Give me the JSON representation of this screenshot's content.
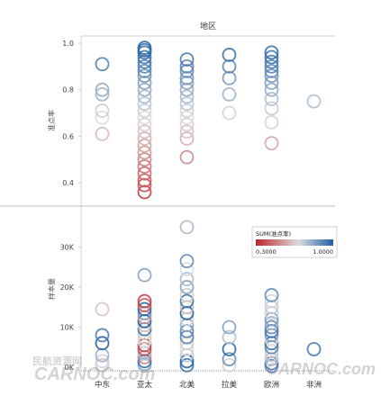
{
  "chart_data": {
    "type": "scatter",
    "title": "地区",
    "categories": [
      "中东",
      "亚太",
      "北美",
      "拉美",
      "欧洲",
      "非洲"
    ],
    "panels": [
      {
        "ylabel": "准点率",
        "ylim": [
          0.35,
          1.0
        ],
        "yticks": [
          0.4,
          0.6,
          0.8,
          1.0
        ],
        "yticklabels": [
          "0.4",
          "0.6",
          "0.8",
          "1.0"
        ],
        "values_by_category": [
          [
            0.61,
            0.68,
            0.71,
            0.78,
            0.8,
            0.91
          ],
          [
            0.36,
            0.39,
            0.41,
            0.44,
            0.47,
            0.5,
            0.53,
            0.56,
            0.59,
            0.62,
            0.65,
            0.68,
            0.71,
            0.74,
            0.77,
            0.8,
            0.83,
            0.86,
            0.88,
            0.9,
            0.92,
            0.94,
            0.96,
            0.97,
            0.98
          ],
          [
            0.51,
            0.59,
            0.62,
            0.65,
            0.68,
            0.71,
            0.74,
            0.77,
            0.8,
            0.83,
            0.85,
            0.88,
            0.9,
            0.93
          ],
          [
            0.7,
            0.78,
            0.85,
            0.9,
            0.95
          ],
          [
            0.57,
            0.66,
            0.72,
            0.76,
            0.8,
            0.83,
            0.86,
            0.88,
            0.9,
            0.92,
            0.94,
            0.96
          ],
          [
            0.75
          ]
        ]
      },
      {
        "ylabel": "样本量",
        "ylim": [
          0,
          38000
        ],
        "yticks": [
          0,
          10000,
          20000,
          30000
        ],
        "yticklabels": [
          "0K",
          "10K",
          "20K",
          "30K"
        ],
        "values_by_category": [
          [
            500,
            1500,
            3000,
            6000,
            8000,
            14500
          ],
          [
            300,
            800,
            1500,
            2500,
            3500,
            4500,
            5500,
            6500,
            7500,
            8500,
            9500,
            10500,
            11500,
            12500,
            13500,
            14500,
            15500,
            16500,
            23000
          ],
          [
            500,
            1500,
            3000,
            4500,
            6000,
            7500,
            9000,
            10500,
            12000,
            13500,
            15000,
            16500,
            18000,
            20000,
            22000,
            24500,
            26500,
            35000
          ],
          [
            500,
            2000,
            4500,
            7500,
            10000
          ],
          [
            300,
            1000,
            2000,
            3000,
            4000,
            5000,
            6000,
            7000,
            8000,
            9000,
            10000,
            11000,
            12000,
            13500,
            15000,
            16500,
            18000
          ],
          [
            4500
          ]
        ]
      }
    ],
    "legend": {
      "title": "SUM(准点率)",
      "min_label": "0.3000",
      "max_label": "1.0000",
      "placement": "right",
      "color_low": "#c0252a",
      "color_mid": "#dcdcdc",
      "color_high": "#1f5fa5",
      "range": [
        0.3,
        1.0
      ]
    },
    "grid": false
  },
  "watermarks": {
    "left_top": "民航资源网",
    "left": "CARNOC.com",
    "right": "CARNOC.com"
  }
}
